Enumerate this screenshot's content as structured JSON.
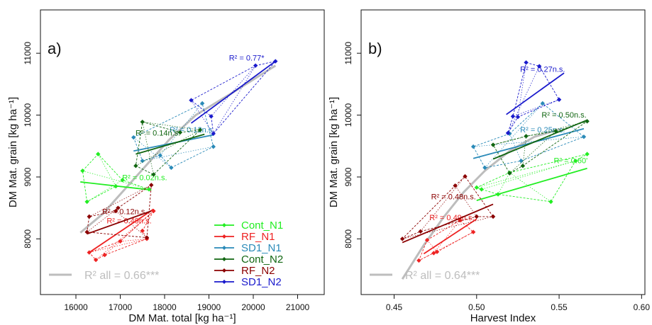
{
  "colors": {
    "Cont_N1": "#22ee22",
    "RF_N1": "#ee2222",
    "SD1_N1": "#2a8ab8",
    "Cont_N2": "#116611",
    "RF_N2": "#8b0000",
    "SD1_N2": "#1a1acc",
    "overall": "#bdbdbd"
  },
  "legend": {
    "items": [
      {
        "key": "Cont_N1",
        "label": "Cont_N1"
      },
      {
        "key": "RF_N1",
        "label": "RF_N1"
      },
      {
        "key": "SD1_N1",
        "label": "SD1_N1"
      },
      {
        "key": "Cont_N2",
        "label": "Cont_N2"
      },
      {
        "key": "RF_N2",
        "label": "RF_N2"
      },
      {
        "key": "SD1_N2",
        "label": "SD1_N2"
      }
    ]
  },
  "chart_data": [
    {
      "type": "scatter",
      "panel_label": "a)",
      "xlabel": "DM Mat. total [kg ha⁻¹]",
      "ylabel": "DM Mat. grain [kg ha⁻¹]",
      "xlim": [
        15200,
        21600
      ],
      "ylim": [
        7100,
        11700
      ],
      "xticks": [
        16000,
        17000,
        18000,
        19000,
        20000,
        21000
      ],
      "yticks": [
        8000,
        9000,
        10000,
        11000
      ],
      "overall": {
        "label": "R² all = 0.66***",
        "curve": [
          [
            16100,
            8100
          ],
          [
            16600,
            8400
          ],
          [
            17100,
            8800
          ],
          [
            17600,
            9200
          ],
          [
            18100,
            9600
          ],
          [
            18700,
            10000
          ],
          [
            19500,
            10350
          ],
          [
            20500,
            10800
          ]
        ]
      },
      "series": [
        {
          "key": "Cont_N1",
          "r2": "R² = 0.02n.s.",
          "r2_at": [
            17550,
            8950
          ],
          "points": [
            [
              16150,
              9100
            ],
            [
              16500,
              9370
            ],
            [
              16250,
              8600
            ],
            [
              16900,
              8850
            ],
            [
              17650,
              8800
            ],
            [
              17050,
              8950
            ]
          ],
          "fit": [
            [
              16100,
              8920
            ],
            [
              17700,
              8790
            ]
          ]
        },
        {
          "key": "RF_N1",
          "r2": "R² = 0.49n.s.",
          "r2_at": [
            17200,
            8250
          ],
          "points": [
            [
              16300,
              7780
            ],
            [
              16450,
              7660
            ],
            [
              16650,
              7740
            ],
            [
              17000,
              7960
            ],
            [
              17600,
              8000
            ],
            [
              17500,
              8130
            ],
            [
              17750,
              8450
            ]
          ],
          "fit": [
            [
              16300,
              7780
            ],
            [
              17750,
              8480
            ]
          ]
        },
        {
          "key": "SD1_N1",
          "r2": "R² = 0.12n.s.",
          "r2_at": [
            18620,
            9720
          ],
          "points": [
            [
              17300,
              9640
            ],
            [
              17500,
              9260
            ],
            [
              18150,
              9150
            ],
            [
              18850,
              10190
            ],
            [
              19100,
              9490
            ],
            [
              17900,
              9350
            ]
          ],
          "fit": [
            [
              17300,
              9420
            ],
            [
              19100,
              9680
            ]
          ]
        },
        {
          "key": "Cont_N2",
          "r2": "R² = 0.14n.s.",
          "r2_at": [
            17850,
            9670
          ],
          "points": [
            [
              17500,
              9890
            ],
            [
              17350,
              9180
            ],
            [
              18350,
              9720
            ],
            [
              18800,
              9760
            ],
            [
              17750,
              9040
            ]
          ],
          "fit": [
            [
              17350,
              9370
            ],
            [
              18900,
              9690
            ]
          ]
        },
        {
          "key": "RF_N2",
          "r2": "R² = 0.12n.s.",
          "r2_at": [
            17100,
            8400
          ],
          "points": [
            [
              16250,
              8110
            ],
            [
              16300,
              8360
            ],
            [
              16900,
              8450
            ],
            [
              17700,
              8870
            ],
            [
              17600,
              8020
            ],
            [
              16950,
              8500
            ]
          ],
          "fit": [
            [
              16250,
              8080
            ],
            [
              17700,
              8450
            ]
          ]
        },
        {
          "key": "SD1_N2",
          "r2": "R² = 0.77*",
          "r2_at": [
            19850,
            10880
          ],
          "points": [
            [
              18600,
              10240
            ],
            [
              19050,
              9980
            ],
            [
              20050,
              10800
            ],
            [
              20500,
              10870
            ],
            [
              19100,
              9700
            ]
          ],
          "fit": [
            [
              18600,
              9870
            ],
            [
              20500,
              10870
            ]
          ]
        }
      ]
    },
    {
      "type": "scatter",
      "panel_label": "b)",
      "xlabel": "Harvest Index",
      "ylabel": "DM Mat. grain [kg ha⁻¹]",
      "xlim": [
        0.43,
        0.602
      ],
      "ylim": [
        7100,
        11700
      ],
      "xticks": [
        0.45,
        0.5,
        0.55,
        0.6
      ],
      "yticks": [
        8000,
        9000,
        10000,
        11000
      ],
      "overall": {
        "label": "R² all = 0.64***",
        "curve": [
          [
            0.455,
            7350
          ],
          [
            0.468,
            7900
          ],
          [
            0.48,
            8350
          ],
          [
            0.492,
            8750
          ],
          [
            0.505,
            9100
          ],
          [
            0.52,
            9420
          ],
          [
            0.535,
            9650
          ],
          [
            0.55,
            9770
          ]
        ]
      },
      "series": [
        {
          "key": "Cont_N1",
          "r2": "R² = 0.60'",
          "r2_at": [
            0.557,
            9220
          ],
          "points": [
            [
              0.5,
              8830
            ],
            [
              0.503,
              8800
            ],
            [
              0.52,
              9070
            ],
            [
              0.56,
              9260
            ],
            [
              0.567,
              9370
            ],
            [
              0.545,
              8600
            ],
            [
              0.513,
              8720
            ]
          ],
          "fit": [
            [
              0.5,
              8620
            ],
            [
              0.567,
              9140
            ]
          ]
        },
        {
          "key": "RF_N1",
          "r2": "R² = 0.49n.s.",
          "r2_at": [
            0.485,
            8300
          ],
          "points": [
            [
              0.465,
              7650
            ],
            [
              0.47,
              7980
            ],
            [
              0.474,
              7770
            ],
            [
              0.476,
              7790
            ],
            [
              0.498,
              8110
            ],
            [
              0.49,
              8300
            ]
          ],
          "fit": [
            [
              0.468,
              7760
            ],
            [
              0.5,
              8320
            ]
          ]
        },
        {
          "key": "SD1_N1",
          "r2": "R² = 0.25n.s.",
          "r2_at": [
            0.54,
            9720
          ],
          "points": [
            [
              0.498,
              9490
            ],
            [
              0.505,
              9150
            ],
            [
              0.527,
              9260
            ],
            [
              0.54,
              10190
            ],
            [
              0.565,
              9650
            ],
            [
              0.52,
              9700
            ]
          ],
          "fit": [
            [
              0.498,
              9300
            ],
            [
              0.565,
              9780
            ]
          ]
        },
        {
          "key": "Cont_N2",
          "r2": "R² = 0.50n.s.",
          "r2_at": [
            0.553,
            9960
          ],
          "points": [
            [
              0.51,
              9520
            ],
            [
              0.52,
              9060
            ],
            [
              0.53,
              9660
            ],
            [
              0.548,
              9740
            ],
            [
              0.567,
              9900
            ],
            [
              0.528,
              9180
            ]
          ],
          "fit": [
            [
              0.51,
              9290
            ],
            [
              0.567,
              9920
            ]
          ]
        },
        {
          "key": "RF_N2",
          "r2": "R² = 0.48n.s.",
          "r2_at": [
            0.486,
            8640
          ],
          "points": [
            [
              0.455,
              8000
            ],
            [
              0.466,
              8120
            ],
            [
              0.487,
              8860
            ],
            [
              0.493,
              9010
            ],
            [
              0.51,
              8360
            ],
            [
              0.5,
              8360
            ]
          ],
          "fit": [
            [
              0.455,
              7940
            ],
            [
              0.51,
              8560
            ]
          ]
        },
        {
          "key": "SD1_N2",
          "r2": "R² = 0.27n.s.",
          "r2_at": [
            0.54,
            10700
          ],
          "points": [
            [
              0.519,
              9710
            ],
            [
              0.522,
              9980
            ],
            [
              0.53,
              10850
            ],
            [
              0.538,
              10790
            ],
            [
              0.55,
              10250
            ],
            [
              0.525,
              9970
            ]
          ],
          "fit": [
            [
              0.518,
              10010
            ],
            [
              0.553,
              10680
            ]
          ]
        }
      ]
    }
  ]
}
